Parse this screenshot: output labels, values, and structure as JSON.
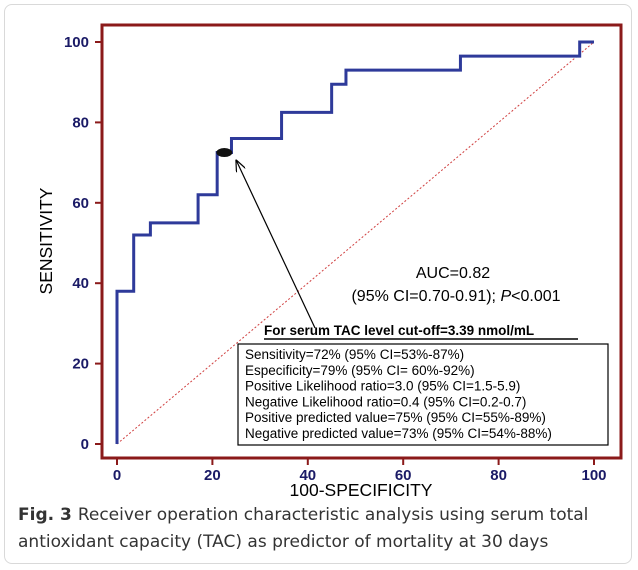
{
  "figure": {
    "label": "Fig. 3",
    "caption": "Receiver operation characteristic analysis using serum total antioxidant capacity (TAC) as predictor of mortality at 30 days"
  },
  "colors": {
    "roc_line": "#2e3a9a",
    "diagonal": "#d04040",
    "axis_frame": "#8b1a1a",
    "tick_text": "#1a1a66",
    "text": "#000000"
  },
  "chart_data": {
    "type": "line",
    "xlabel": "100-SPECIFICITY",
    "ylabel": "SENSITIVITY",
    "xlim": [
      0,
      100
    ],
    "ylim": [
      0,
      100
    ],
    "xticks": [
      "0",
      "20",
      "40",
      "60",
      "80",
      "100"
    ],
    "yticks": [
      "0",
      "20",
      "40",
      "60",
      "80",
      "100"
    ],
    "grid": false,
    "series": [
      {
        "type": "step",
        "color": "#2e3a9a",
        "x": [
          0,
          0,
          3.5,
          3.5,
          7,
          7,
          17,
          17,
          21,
          21,
          24,
          24,
          34.5,
          34.5,
          45,
          45,
          48,
          48,
          72,
          72,
          97,
          97,
          100
        ],
        "y": [
          0,
          38,
          38,
          52,
          52,
          55,
          55,
          62,
          62,
          72.5,
          72.5,
          76,
          76,
          82.5,
          82.5,
          89.5,
          89.5,
          93,
          93,
          96.5,
          96.5,
          100,
          100
        ]
      },
      {
        "type": "reference-diagonal",
        "color": "#d04040",
        "x": [
          0,
          100
        ],
        "y": [
          0,
          100
        ]
      }
    ],
    "cutoff_point": {
      "x": 22.5,
      "y": 72.5
    },
    "auc_line1": "AUC=0.82",
    "auc_line2_prefix": "(95% CI=0.70-0.91);",
    "auc_line2_p": "P",
    "auc_line2_suffix": "<0.001",
    "cutoff_label": "For serum TAC level cut-off=3.39 nmol/mL",
    "stats": [
      "Sensitivity=72% (95% CI=53%-87%)",
      "Especificity=79% (95% CI= 60%-92%)",
      "Positive Likelihood ratio=3.0 (95% CI=1.5-5.9)",
      "Negative Likelihood ratio=0.4 (95% CI=0.2-0.7)",
      "Positive predicted value=75% (95% CI=55%-89%)",
      "Negative predicted value=73% (95% CI=54%-88%)"
    ]
  }
}
